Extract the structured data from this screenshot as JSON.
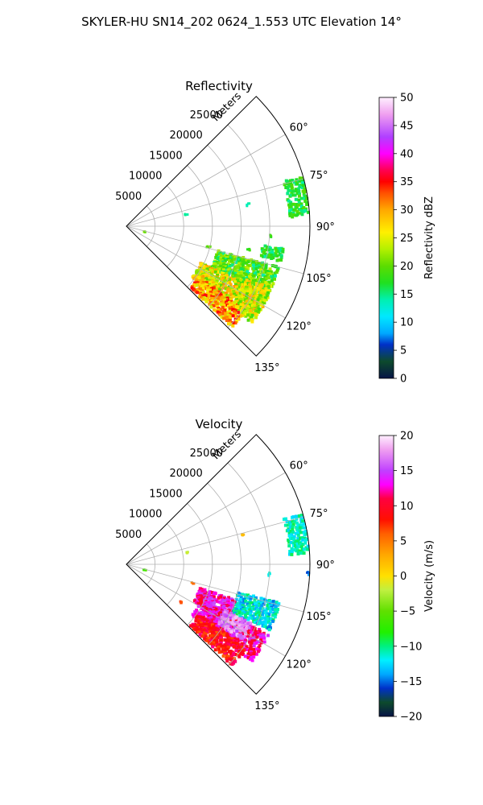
{
  "suptitle": "SKYLER-HU  SN14_202  0624_1.553 UTC Elevation 14°",
  "chart_data": [
    {
      "type": "heatmap",
      "projection": "polar-sector",
      "title": "Reflectivity",
      "radial_label": "Meters",
      "theta_range_deg": [
        45,
        135
      ],
      "r_range": [
        0,
        32000
      ],
      "radial_ticks": [
        5000,
        10000,
        15000,
        20000,
        25000
      ],
      "angular_ticks": [
        60,
        75,
        90,
        105,
        120,
        135
      ],
      "angular_tick_labels": [
        "60°",
        "75°",
        "90°",
        "105°",
        "120°",
        "135°"
      ],
      "grid": true,
      "colorbar": {
        "label": "Reflectivity dBZ",
        "range": [
          0,
          50
        ],
        "ticks": [
          0,
          5,
          10,
          15,
          20,
          25,
          30,
          35,
          40,
          45,
          50
        ],
        "stops": [
          [
            0,
            "#061446"
          ],
          [
            3,
            "#0d4a2c"
          ],
          [
            6,
            "#0030c8"
          ],
          [
            8,
            "#00a8ff"
          ],
          [
            11,
            "#00e8ff"
          ],
          [
            14,
            "#00f0b0"
          ],
          [
            17,
            "#20e020"
          ],
          [
            20,
            "#5cdc00"
          ],
          [
            23,
            "#b4f000"
          ],
          [
            26,
            "#fff000"
          ],
          [
            30,
            "#ffa800"
          ],
          [
            33,
            "#ff5000"
          ],
          [
            35,
            "#ff0000"
          ],
          [
            37,
            "#ff0050"
          ],
          [
            40,
            "#ff00ff"
          ],
          [
            43,
            "#b040ff"
          ],
          [
            47,
            "#f0a0f0"
          ],
          [
            50,
            "#fff0ff"
          ]
        ]
      },
      "echo_regions": [
        {
          "theta_deg": [
            74,
            86
          ],
          "r_m": [
            28500,
            31800
          ],
          "value": 17,
          "spread": 3
        },
        {
          "theta_deg": [
            105,
            116
          ],
          "r_m": [
            16500,
            27500
          ],
          "value": 19,
          "spread": 5
        },
        {
          "theta_deg": [
            116,
            127
          ],
          "r_m": [
            14500,
            27500
          ],
          "value": 25,
          "spread": 6
        },
        {
          "theta_deg": [
            125,
            133
          ],
          "r_m": [
            15500,
            25500
          ],
          "value": 30,
          "spread": 6
        },
        {
          "theta_deg": [
            112,
            126
          ],
          "r_m": [
            23000,
            27500
          ],
          "value": 24,
          "spread": 6
        },
        {
          "theta_deg": [
            98,
            102
          ],
          "r_m": [
            24000,
            27500
          ],
          "value": 17,
          "spread": 3
        }
      ],
      "scattered_echoes": [
        {
          "theta_deg": 79,
          "r_m": 10700,
          "value": 14
        },
        {
          "theta_deg": 80,
          "r_m": 21500,
          "value": 14
        },
        {
          "theta_deg": 94,
          "r_m": 25000,
          "value": 18
        },
        {
          "theta_deg": 107,
          "r_m": 3400,
          "value": 20
        },
        {
          "theta_deg": 104,
          "r_m": 14800,
          "value": 20
        },
        {
          "theta_deg": 101,
          "r_m": 21800,
          "value": 18
        }
      ]
    },
    {
      "type": "heatmap",
      "projection": "polar-sector",
      "title": "Velocity",
      "radial_label": "Meters",
      "theta_range_deg": [
        45,
        135
      ],
      "r_range": [
        0,
        32000
      ],
      "radial_ticks": [
        5000,
        10000,
        15000,
        20000,
        25000
      ],
      "angular_ticks": [
        60,
        75,
        90,
        105,
        120,
        135
      ],
      "angular_tick_labels": [
        "60°",
        "75°",
        "90°",
        "105°",
        "120°",
        "135°"
      ],
      "grid": true,
      "colorbar": {
        "label": "Velocity (m/s)",
        "range": [
          -20,
          20
        ],
        "ticks": [
          -20,
          -15,
          -10,
          -5,
          0,
          5,
          10,
          15,
          20
        ],
        "stops": [
          [
            -20,
            "#061446"
          ],
          [
            -18,
            "#0d4a2c"
          ],
          [
            -16,
            "#0030c8"
          ],
          [
            -14,
            "#00a8ff"
          ],
          [
            -12,
            "#00f0ff"
          ],
          [
            -10,
            "#00f080"
          ],
          [
            -8,
            "#20f000"
          ],
          [
            -5,
            "#60e000"
          ],
          [
            -2,
            "#c0f040"
          ],
          [
            0,
            "#ffe000"
          ],
          [
            3,
            "#ffa800"
          ],
          [
            6,
            "#ff6000"
          ],
          [
            8,
            "#ff1000"
          ],
          [
            11,
            "#ff0040"
          ],
          [
            13,
            "#ff00ff"
          ],
          [
            15,
            "#c040ff"
          ],
          [
            18,
            "#f0a0f0"
          ],
          [
            20,
            "#fff0ff"
          ]
        ]
      },
      "echo_regions": [
        {
          "theta_deg": [
            74,
            86
          ],
          "r_m": [
            28500,
            31800
          ],
          "value": -11,
          "spread": 2
        },
        {
          "theta_deg": [
            104,
            114
          ],
          "r_m": [
            20000,
            27500
          ],
          "value": -12,
          "spread": 3
        },
        {
          "theta_deg": [
            108,
            118
          ],
          "r_m": [
            13500,
            20000
          ],
          "value": 13,
          "spread": 3
        },
        {
          "theta_deg": [
            116,
            127
          ],
          "r_m": [
            14500,
            27500
          ],
          "value": 12,
          "spread": 3
        },
        {
          "theta_deg": [
            125,
            133
          ],
          "r_m": [
            15500,
            25500
          ],
          "value": 9,
          "spread": 3
        },
        {
          "theta_deg": [
            115,
            122
          ],
          "r_m": [
            19000,
            24000
          ],
          "value": 17,
          "spread": 2
        }
      ],
      "scattered_echoes": [
        {
          "theta_deg": 79,
          "r_m": 10700,
          "value": -2
        },
        {
          "theta_deg": 76,
          "r_m": 21000,
          "value": 2
        },
        {
          "theta_deg": 94,
          "r_m": 25000,
          "value": -12
        },
        {
          "theta_deg": 107,
          "r_m": 3400,
          "value": -6
        },
        {
          "theta_deg": 106,
          "r_m": 12000,
          "value": 5
        },
        {
          "theta_deg": 125,
          "r_m": 11600,
          "value": 7
        },
        {
          "theta_deg": 93,
          "r_m": 31600,
          "value": -15
        }
      ]
    }
  ]
}
